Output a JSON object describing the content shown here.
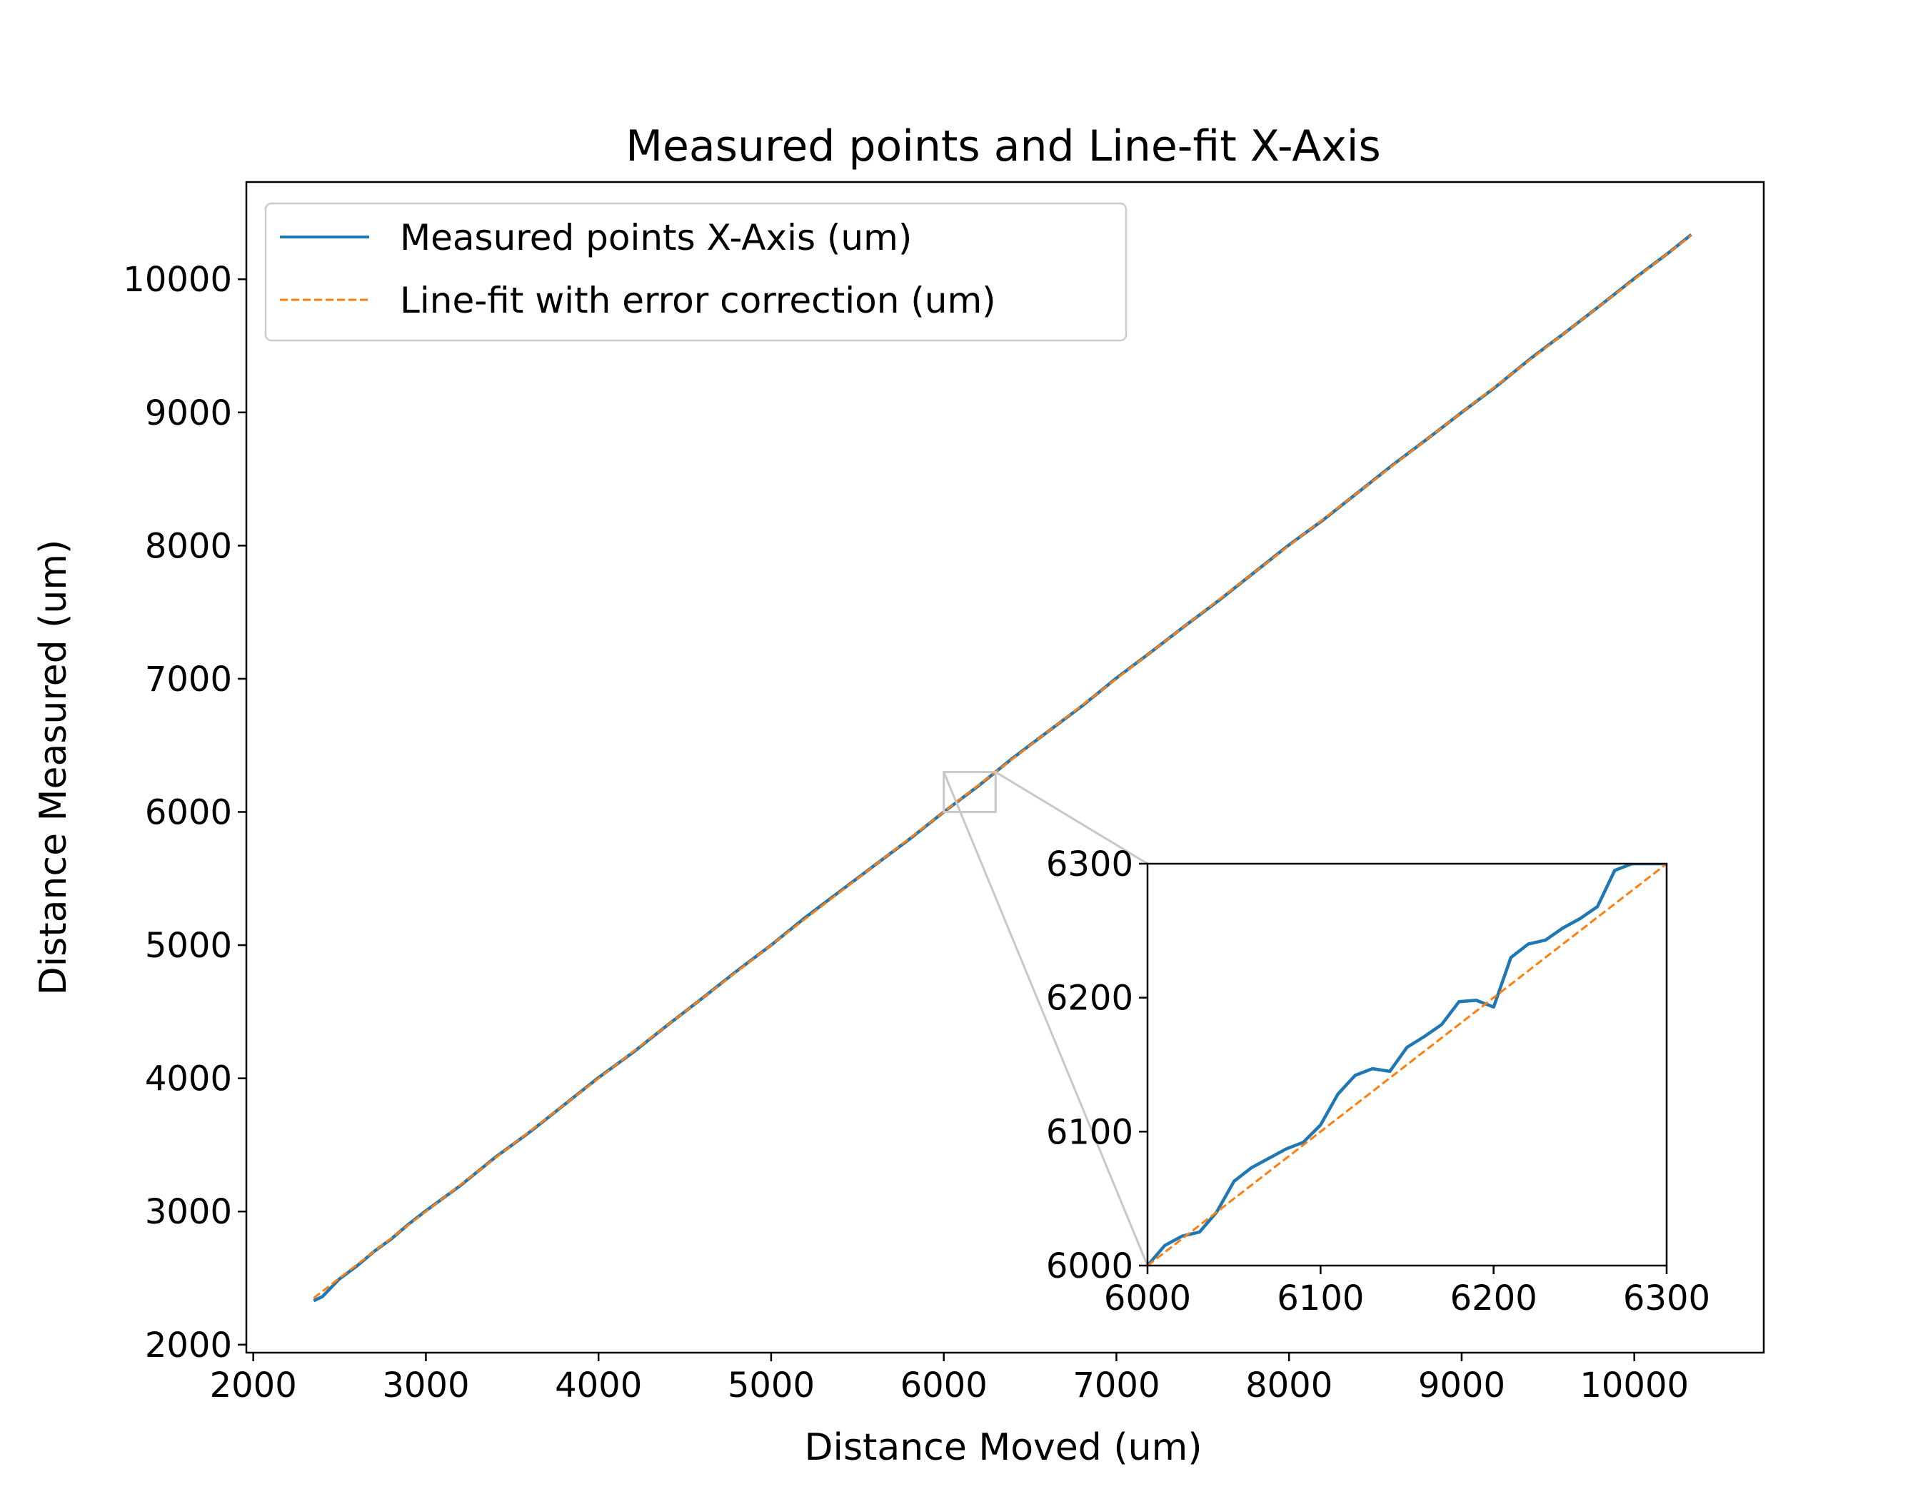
{
  "chart_data": {
    "type": "line",
    "title": "Measured points and Line-fit X-Axis",
    "xlabel": "Distance Moved (um)",
    "ylabel": "Distance Measured (um)",
    "xlim": [
      1960,
      10750
    ],
    "ylim": [
      1940,
      10730
    ],
    "xticks": [
      2000,
      3000,
      4000,
      5000,
      6000,
      7000,
      8000,
      9000,
      10000
    ],
    "yticks": [
      2000,
      3000,
      4000,
      5000,
      6000,
      7000,
      8000,
      9000,
      10000
    ],
    "grid": false,
    "legend_position": "upper-left",
    "colors": {
      "measured": "#1f77b4",
      "fit": "#ff7f0e",
      "zoom_box": "#c8c8c8"
    },
    "series": [
      {
        "name": "Measured points X-Axis (um)",
        "style": "solid",
        "x": [
          2350,
          2400,
          2500,
          2600,
          2700,
          2800,
          2900,
          3000,
          3200,
          3400,
          3600,
          3800,
          4000,
          4200,
          4400,
          4600,
          4800,
          5000,
          5200,
          5400,
          5600,
          5800,
          6000,
          6200,
          6400,
          6600,
          6800,
          7000,
          7200,
          7400,
          7600,
          7800,
          8000,
          8200,
          8400,
          8600,
          8800,
          9000,
          9200,
          9400,
          9600,
          9800,
          10000,
          10200,
          10330
        ],
        "y": [
          2330,
          2360,
          2495,
          2590,
          2700,
          2795,
          2905,
          3005,
          3195,
          3405,
          3595,
          3800,
          4005,
          4195,
          4400,
          4600,
          4805,
          5000,
          5210,
          5405,
          5600,
          5795,
          6000,
          6195,
          6405,
          6600,
          6795,
          7005,
          7200,
          7400,
          7595,
          7800,
          8005,
          8195,
          8400,
          8605,
          8800,
          9000,
          9195,
          9405,
          9600,
          9800,
          10005,
          10200,
          10335
        ]
      },
      {
        "name": "Line-fit with error correction (um)",
        "style": "dashed",
        "x": [
          2350,
          10330
        ],
        "y": [
          2350,
          10330
        ]
      }
    ],
    "inset": {
      "xlim": [
        6000,
        6300
      ],
      "ylim": [
        6000,
        6300
      ],
      "xticks": [
        6000,
        6100,
        6200,
        6300
      ],
      "yticks": [
        6000,
        6100,
        6200,
        6300
      ],
      "series": [
        {
          "name": "Measured points X-Axis (um)",
          "style": "solid",
          "x": [
            6000,
            6010,
            6020,
            6030,
            6040,
            6050,
            6060,
            6070,
            6080,
            6090,
            6100,
            6110,
            6120,
            6130,
            6140,
            6150,
            6160,
            6170,
            6180,
            6190,
            6200,
            6210,
            6220,
            6230,
            6240,
            6250,
            6260,
            6270,
            6280,
            6290,
            6300
          ],
          "y": [
            6000,
            6015,
            6022,
            6025,
            6040,
            6063,
            6073,
            6080,
            6087,
            6092,
            6105,
            6128,
            6142,
            6147,
            6145,
            6163,
            6171,
            6180,
            6197,
            6198,
            6193,
            6230,
            6240,
            6243,
            6252,
            6259,
            6268,
            6295,
            6300,
            6300,
            6300
          ]
        },
        {
          "name": "Line-fit with error correction (um)",
          "style": "dashed",
          "x": [
            6000,
            6300
          ],
          "y": [
            6000,
            6300
          ]
        }
      ]
    }
  }
}
